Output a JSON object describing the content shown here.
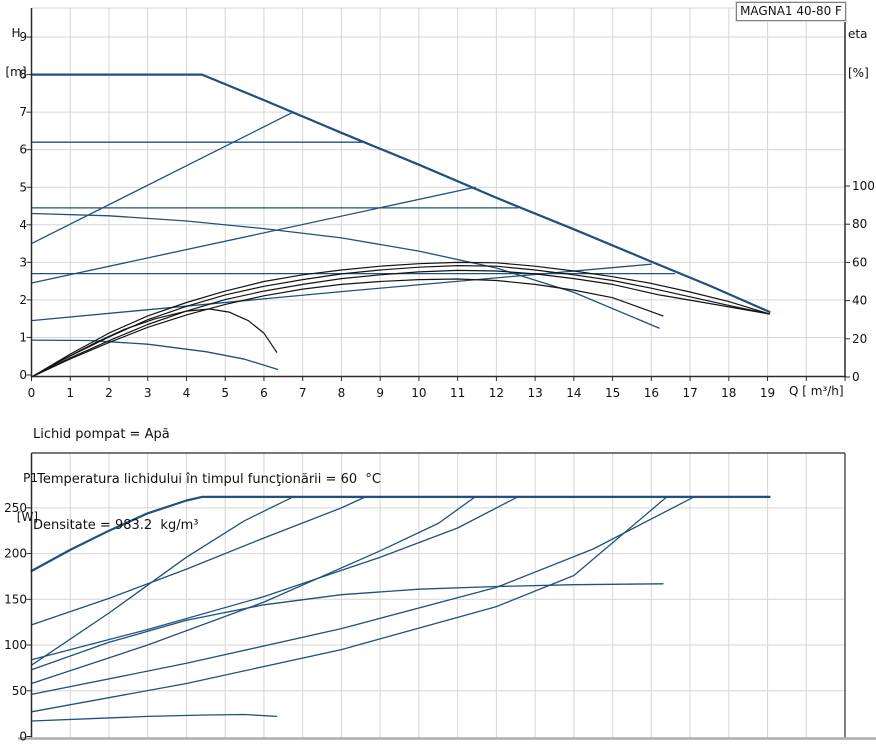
{
  "title_box": {
    "label": "MAGNA1 40-80 F"
  },
  "info": {
    "line1": "Lichid pompat = Apă",
    "line2": " Temperatura lichidului în timpul funcţionării = 60  °C",
    "line3": "Densitate = 983.2  kg/m³"
  },
  "colors": {
    "curve_blue": "#20507e",
    "curve_black": "#141414",
    "grid": "#d6d6d6",
    "axis": "#2b2b2b",
    "frame_grey": "#aeaeae"
  },
  "chart_data": [
    {
      "id": "hq-eta-chart",
      "type": "line",
      "title": "MAGNA1 40-80 F",
      "x_axis": {
        "label": "Q [ m³/h]",
        "ticks": [
          0,
          1,
          2,
          3,
          4,
          5,
          6,
          7,
          8,
          9,
          10,
          11,
          12,
          13,
          14,
          15,
          16,
          17,
          18,
          19
        ],
        "range": [
          0,
          21
        ],
        "grid": true
      },
      "y_left": {
        "label": "H",
        "unit": "[m]",
        "ticks": [
          0,
          1,
          2,
          3,
          4,
          5,
          6,
          7,
          8,
          9
        ],
        "range": [
          0,
          9.8
        ],
        "grid": true
      },
      "y_right": {
        "label": "eta",
        "unit": "[%]",
        "ticks": [
          0,
          20,
          40,
          60,
          80,
          100
        ],
        "range": [
          0,
          193
        ]
      },
      "series": [
        {
          "name": "max-speed-curve",
          "axis": "H",
          "color": "blue",
          "width": 2.2,
          "points": [
            [
              0,
              8
            ],
            [
              4.4,
              8
            ],
            [
              6,
              7.32
            ],
            [
              8,
              6.45
            ],
            [
              10,
              5.6
            ],
            [
              12,
              4.72
            ],
            [
              14,
              3.88
            ],
            [
              16,
              3.02
            ],
            [
              17.5,
              2.38
            ],
            [
              19.05,
              1.68
            ]
          ]
        },
        {
          "name": "const-pressure-6.2",
          "axis": "H",
          "color": "blue",
          "width": 1.3,
          "points": [
            [
              0,
              6.2
            ],
            [
              8.62,
              6.2
            ]
          ]
        },
        {
          "name": "prop-pressure-7.0",
          "axis": "H",
          "color": "blue",
          "width": 1.3,
          "points": [
            [
              0,
              3.5
            ],
            [
              6.75,
              7.0
            ]
          ]
        },
        {
          "name": "const-pressure-4.45",
          "axis": "H",
          "color": "blue",
          "width": 1.3,
          "points": [
            [
              0,
              4.45
            ],
            [
              12.55,
              4.45
            ]
          ]
        },
        {
          "name": "prop-pressure-5.0",
          "axis": "H",
          "color": "blue",
          "width": 1.3,
          "points": [
            [
              0,
              2.45
            ],
            [
              11.45,
              5.0
            ]
          ]
        },
        {
          "name": "const-pressure-2.7",
          "axis": "H",
          "color": "blue",
          "width": 1.3,
          "points": [
            [
              0,
              2.7
            ],
            [
              16.6,
              2.7
            ]
          ]
        },
        {
          "name": "prop-pressure-2.95",
          "axis": "H",
          "color": "blue",
          "width": 1.3,
          "points": [
            [
              0,
              1.45
            ],
            [
              8,
              2.22
            ],
            [
              16.0,
              2.95
            ]
          ]
        },
        {
          "name": "intermediate-speed-curve",
          "axis": "H",
          "color": "blue",
          "width": 1.3,
          "points": [
            [
              0,
              4.3
            ],
            [
              2,
              4.24
            ],
            [
              4,
              4.1
            ],
            [
              6,
              3.9
            ],
            [
              8,
              3.65
            ],
            [
              10,
              3.3
            ],
            [
              12,
              2.85
            ],
            [
              14,
              2.2
            ],
            [
              16.2,
              1.25
            ]
          ]
        },
        {
          "name": "min-speed-curve",
          "axis": "H",
          "color": "blue",
          "width": 1.3,
          "points": [
            [
              0,
              0.93
            ],
            [
              1.5,
              0.92
            ],
            [
              3,
              0.82
            ],
            [
              4.5,
              0.62
            ],
            [
              5.5,
              0.42
            ],
            [
              6.35,
              0.15
            ]
          ]
        },
        {
          "name": "eta-curve-1",
          "axis": "eta",
          "color": "black",
          "width": 1.2,
          "points": [
            [
              0,
              0
            ],
            [
              1,
              12
            ],
            [
              2,
              23
            ],
            [
              3,
              32
            ],
            [
              4,
              39
            ],
            [
              5,
              45
            ],
            [
              6,
              50
            ],
            [
              7,
              53.5
            ],
            [
              8,
              56
            ],
            [
              9,
              58
            ],
            [
              10,
              59.3
            ],
            [
              11,
              60
            ],
            [
              12,
              59.8
            ],
            [
              13,
              58
            ],
            [
              14,
              55.5
            ],
            [
              15,
              52.5
            ],
            [
              16,
              49
            ],
            [
              17,
              44.5
            ],
            [
              18,
              39.5
            ],
            [
              19.05,
              33
            ]
          ]
        },
        {
          "name": "eta-curve-2",
          "axis": "eta",
          "color": "black",
          "width": 1.2,
          "points": [
            [
              0,
              0
            ],
            [
              1,
              11
            ],
            [
              2,
              21
            ],
            [
              3,
              30
            ],
            [
              4,
              37
            ],
            [
              5,
              43
            ],
            [
              6,
              47.5
            ],
            [
              7,
              51
            ],
            [
              8,
              54
            ],
            [
              9,
              56
            ],
            [
              10,
              57.5
            ],
            [
              11,
              58.3
            ],
            [
              12,
              58
            ],
            [
              13,
              56
            ],
            [
              14,
              53.5
            ],
            [
              15,
              50.5
            ],
            [
              16,
              46.5
            ],
            [
              17,
              42
            ],
            [
              18,
              37.5
            ],
            [
              19.05,
              33
            ]
          ]
        },
        {
          "name": "eta-curve-3",
          "axis": "eta",
          "color": "black",
          "width": 1.2,
          "points": [
            [
              0,
              0
            ],
            [
              1,
              10
            ],
            [
              2,
              19
            ],
            [
              3,
              27.5
            ],
            [
              4,
              34.5
            ],
            [
              5,
              40.5
            ],
            [
              6,
              45
            ],
            [
              7,
              48.5
            ],
            [
              8,
              51.5
            ],
            [
              9,
              53.5
            ],
            [
              10,
              55
            ],
            [
              11,
              55.8
            ],
            [
              12,
              55.5
            ],
            [
              13,
              54
            ],
            [
              14,
              51.5
            ],
            [
              15,
              48.5
            ],
            [
              16.2,
              43
            ],
            [
              17.5,
              38.5
            ],
            [
              19.05,
              33
            ]
          ]
        },
        {
          "name": "eta-curve-4",
          "axis": "eta",
          "color": "black",
          "width": 1.2,
          "points": [
            [
              0,
              0
            ],
            [
              1,
              9.5
            ],
            [
              2,
              18
            ],
            [
              3,
              26
            ],
            [
              4,
              32.5
            ],
            [
              5,
              38
            ],
            [
              6,
              42.5
            ],
            [
              7,
              46
            ],
            [
              8,
              48.5
            ],
            [
              9,
              50
            ],
            [
              10,
              51
            ],
            [
              11,
              51.3
            ],
            [
              12,
              50.5
            ],
            [
              13,
              48.5
            ],
            [
              14,
              45.5
            ],
            [
              15,
              41.5
            ],
            [
              16.3,
              32
            ]
          ]
        },
        {
          "name": "eta-curve-min-speed",
          "axis": "eta",
          "color": "black",
          "width": 1.2,
          "points": [
            [
              0,
              0
            ],
            [
              0.8,
              9
            ],
            [
              1.6,
              17.5
            ],
            [
              2.4,
              25
            ],
            [
              3.2,
              30.5
            ],
            [
              4,
              34.5
            ],
            [
              4.6,
              35.6
            ],
            [
              5.1,
              34
            ],
            [
              5.6,
              29.5
            ],
            [
              6,
              23
            ],
            [
              6.33,
              13
            ]
          ]
        }
      ]
    },
    {
      "id": "p1-chart",
      "type": "line",
      "title": "",
      "x_axis": {
        "label": "",
        "ticks": [],
        "range": [
          0,
          21
        ],
        "grid": true
      },
      "y_left": {
        "label": "P1",
        "unit": "[W]",
        "ticks": [
          0,
          50,
          100,
          150,
          200,
          250
        ],
        "range": [
          0,
          310
        ],
        "grid": true
      },
      "series": [
        {
          "name": "p1-max-speed",
          "axis": "P",
          "color": "blue",
          "width": 2.2,
          "points": [
            [
              0,
              181
            ],
            [
              1,
              204
            ],
            [
              2,
              225
            ],
            [
              3,
              244
            ],
            [
              4,
              258
            ],
            [
              4.4,
              262
            ],
            [
              19.05,
              262
            ]
          ]
        },
        {
          "name": "p1-const-pressure-6.2",
          "axis": "P",
          "color": "blue",
          "width": 1.3,
          "points": [
            [
              0,
              122
            ],
            [
              2,
              151
            ],
            [
              4,
              183
            ],
            [
              6,
              217
            ],
            [
              8,
              250
            ],
            [
              8.62,
              262
            ]
          ]
        },
        {
          "name": "p1-const-pressure-4.45",
          "axis": "P",
          "color": "blue",
          "width": 1.3,
          "points": [
            [
              0,
              84
            ],
            [
              3,
              117
            ],
            [
              6,
              153
            ],
            [
              9,
              196
            ],
            [
              11,
              228
            ],
            [
              12.55,
              262
            ]
          ]
        },
        {
          "name": "p1-prop-pressure-7.0",
          "axis": "P",
          "color": "blue",
          "width": 1.3,
          "points": [
            [
              0,
              78
            ],
            [
              2,
              135
            ],
            [
              4,
              196
            ],
            [
              5.5,
              236
            ],
            [
              6.75,
              262
            ]
          ]
        },
        {
          "name": "p1-intermediate-speed",
          "axis": "P",
          "color": "blue",
          "width": 1.3,
          "points": [
            [
              0,
              73
            ],
            [
              2,
              103
            ],
            [
              4,
              127
            ],
            [
              6,
              144
            ],
            [
              8,
              155
            ],
            [
              10,
              161
            ],
            [
              12,
              164
            ],
            [
              14,
              166
            ],
            [
              16.3,
              167
            ]
          ]
        },
        {
          "name": "p1-prop-pressure-5.0",
          "axis": "P",
          "color": "blue",
          "width": 1.3,
          "points": [
            [
              0,
              58
            ],
            [
              3,
              100
            ],
            [
              6,
              147
            ],
            [
              9,
              203
            ],
            [
              10.5,
              233
            ],
            [
              11.45,
              262
            ]
          ]
        },
        {
          "name": "p1-const-pressure-2.7",
          "axis": "P",
          "color": "blue",
          "width": 1.3,
          "points": [
            [
              0,
              46
            ],
            [
              4,
              80
            ],
            [
              8,
              118
            ],
            [
              12,
              163
            ],
            [
              14.5,
              205
            ],
            [
              17.1,
              262
            ]
          ]
        },
        {
          "name": "p1-prop-pressure-2.95",
          "axis": "P",
          "color": "blue",
          "width": 1.3,
          "points": [
            [
              0,
              27
            ],
            [
              4,
              58
            ],
            [
              8,
              95
            ],
            [
              12,
              142
            ],
            [
              14,
              176
            ],
            [
              16.4,
              262
            ]
          ]
        },
        {
          "name": "p1-min-speed",
          "axis": "P",
          "color": "blue",
          "width": 1.3,
          "points": [
            [
              0,
              17
            ],
            [
              1.5,
              19.5
            ],
            [
              3,
              22
            ],
            [
              4.5,
              23.5
            ],
            [
              5.5,
              24
            ],
            [
              6.33,
              22
            ]
          ]
        }
      ]
    }
  ]
}
